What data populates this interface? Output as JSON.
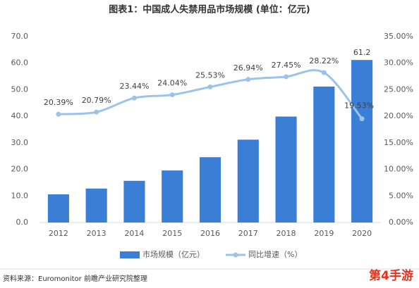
{
  "chart_data": {
    "type": "bar-line",
    "title": "图表1：中国成人失禁用品市场规模 (单位：亿元)",
    "categories": [
      "2012",
      "2013",
      "2014",
      "2015",
      "2016",
      "2017",
      "2018",
      "2019",
      "2020"
    ],
    "series": [
      {
        "name": "市场规模（亿元）",
        "type": "bar",
        "color": "#3a7fd5",
        "values": [
          10.6,
          12.8,
          15.7,
          19.6,
          24.6,
          31.2,
          39.9,
          51.2,
          61.2
        ],
        "value_labels": [
          null,
          null,
          null,
          null,
          null,
          null,
          null,
          null,
          "61.2"
        ]
      },
      {
        "name": "同比增速（%）",
        "type": "line",
        "axis": "y2",
        "color": "#9cc3ea",
        "values": [
          20.39,
          20.79,
          23.44,
          24.04,
          25.53,
          26.94,
          27.45,
          28.22,
          19.53
        ],
        "value_labels": [
          "20.39%",
          "20.79%",
          "23.44%",
          "24.04%",
          "25.53%",
          "26.94%",
          "27.45%",
          "28.22%",
          "19.53%"
        ]
      }
    ],
    "ylim": [
      0,
      70
    ],
    "yticks": [
      {
        "value": 0,
        "label": "0.0"
      },
      {
        "value": 10,
        "label": "10.0"
      },
      {
        "value": 20,
        "label": "20.0"
      },
      {
        "value": 30,
        "label": "30.0"
      },
      {
        "value": 40,
        "label": "40.0"
      },
      {
        "value": 50,
        "label": "50.0"
      },
      {
        "value": 60,
        "label": "60.0"
      },
      {
        "value": 70,
        "label": "70.0"
      }
    ],
    "y2lim": [
      0,
      35
    ],
    "y2ticks": [
      {
        "value": 0,
        "label": "0.00%"
      },
      {
        "value": 5,
        "label": "5.00%"
      },
      {
        "value": 10,
        "label": "10.00%"
      },
      {
        "value": 15,
        "label": "15.00%"
      },
      {
        "value": 20,
        "label": "20.00%"
      },
      {
        "value": 25,
        "label": "25.00%"
      },
      {
        "value": 30,
        "label": "30.00%"
      },
      {
        "value": 35,
        "label": "35.00%"
      }
    ],
    "source": "资料来源：Euromonitor 前瞻产业研究院整理",
    "watermark": "第4手游"
  }
}
